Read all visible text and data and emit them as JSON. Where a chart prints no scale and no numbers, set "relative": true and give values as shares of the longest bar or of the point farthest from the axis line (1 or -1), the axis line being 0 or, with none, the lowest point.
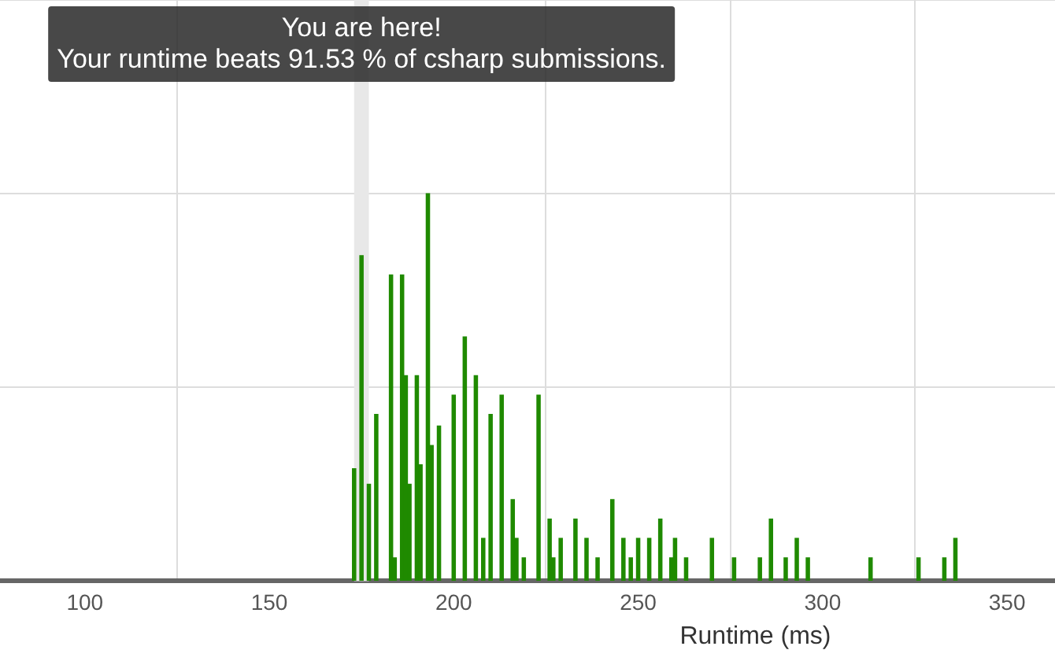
{
  "chart_data": {
    "type": "bar",
    "relative": true,
    "xlabel": "Runtime (ms)",
    "x": [
      173,
      175,
      177,
      179,
      183,
      184,
      186,
      187,
      188,
      190,
      191,
      193,
      194,
      196,
      200,
      203,
      206,
      208,
      210,
      213,
      216,
      217,
      219,
      223,
      226,
      227,
      229,
      233,
      236,
      239,
      243,
      246,
      248,
      250,
      253,
      256,
      259,
      260,
      263,
      270,
      276,
      283,
      286,
      290,
      293,
      296,
      313,
      326,
      333,
      336
    ],
    "series": [
      {
        "color": "#1f8a00",
        "values": [
          0.29,
          0.84,
          0.25,
          0.43,
          0.79,
          0.06,
          0.79,
          0.53,
          0.25,
          0.53,
          0.3,
          1,
          0.35,
          0.4,
          0.48,
          0.63,
          0.53,
          0.11,
          0.43,
          0.48,
          0.21,
          0.11,
          0.06,
          0.48,
          0.16,
          0.06,
          0.11,
          0.16,
          0.11,
          0.06,
          0.21,
          0.11,
          0.06,
          0.11,
          0.11,
          0.16,
          0.06,
          0.11,
          0.06,
          0.11,
          0.06,
          0.06,
          0.16,
          0.06,
          0.11,
          0.06,
          0.06,
          0.06,
          0.06,
          0.11
        ]
      }
    ],
    "xlim": [
      77,
      363
    ],
    "xticks": [
      100,
      150,
      200,
      250,
      300,
      350
    ],
    "grid": true,
    "legend": false,
    "bands": [
      {
        "axis": "x",
        "from": 173,
        "to": 177,
        "color": "#e8e8e8"
      }
    ],
    "annotations": [
      "You are here!",
      "Your runtime beats 91.53 % of csharp submissions."
    ]
  }
}
